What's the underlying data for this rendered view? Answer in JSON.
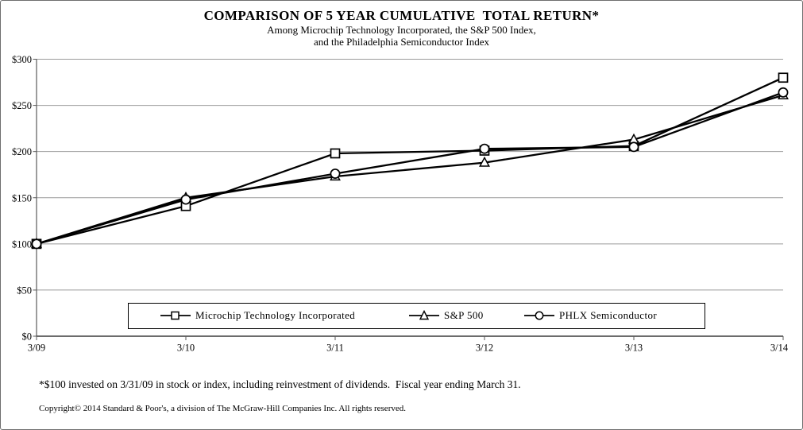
{
  "chart_data": {
    "type": "line",
    "title": "COMPARISON OF 5 YEAR CUMULATIVE  TOTAL RETURN*",
    "subtitle1": "Among Microchip Technology Incorporated, the S&P 500 Index,",
    "subtitle2": "and the Philadelphia Semiconductor Index",
    "categories": [
      "3/09",
      "3/10",
      "3/11",
      "3/12",
      "3/13",
      "3/14"
    ],
    "ylim": [
      0,
      300
    ],
    "y_tick_step": 50,
    "y_tick_labels": [
      "$0",
      "$50",
      "$100",
      "$150",
      "$200",
      "$250",
      "$300"
    ],
    "grid": true,
    "legend_position": "bottom-inside",
    "series": [
      {
        "name": "Microchip Technology Incorporated",
        "marker": "square",
        "color": "#000000",
        "values": [
          100,
          141,
          198,
          201,
          206,
          280
        ]
      },
      {
        "name": "S&P 500",
        "marker": "triangle",
        "color": "#000000",
        "values": [
          100,
          150,
          173,
          188,
          213,
          261
        ]
      },
      {
        "name": "PHLX Semiconductor",
        "marker": "circle",
        "color": "#000000",
        "values": [
          100,
          148,
          176,
          203,
          205,
          264
        ]
      }
    ],
    "footnote": "*$100 invested on 3/31/09 in stock or index, including reinvestment of dividends.  Fiscal year ending March 31.",
    "copyright": "Copyright© 2014 Standard & Poor's, a division of The McGraw-Hill Companies Inc. All rights reserved.",
    "colors": {
      "line": "#000000",
      "marker_fill": "#ffffff",
      "gridline": "#9b9b9b",
      "axis": "#5a5a5a",
      "text": "#000000"
    }
  }
}
